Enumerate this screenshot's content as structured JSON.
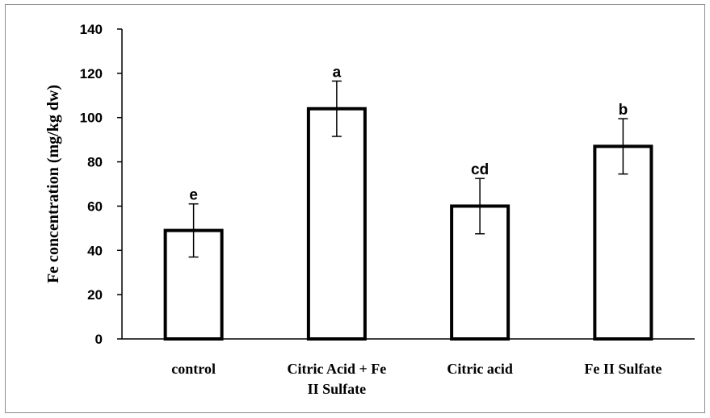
{
  "chart_data": {
    "type": "bar",
    "categories": [
      "control",
      "Citric Acid + Fe II Sulfate",
      "Citric acid",
      "Fe II Sulfate"
    ],
    "category_lines": [
      [
        "control"
      ],
      [
        "Citric Acid + Fe",
        "II Sulfate"
      ],
      [
        "Citric acid"
      ],
      [
        "Fe II Sulfate"
      ]
    ],
    "values": [
      49,
      104,
      60,
      87
    ],
    "error": [
      12,
      12.5,
      12.5,
      12.5
    ],
    "significance_labels": [
      "e",
      "a",
      "cd",
      "b"
    ],
    "ylabel": "Fe concentration (mg/kg dw)",
    "ylim": [
      0,
      140
    ],
    "yticks": [
      0,
      20,
      40,
      60,
      80,
      100,
      120,
      140
    ],
    "grid": false,
    "bar_fill": "#ffffff",
    "bar_stroke": "#000000"
  }
}
